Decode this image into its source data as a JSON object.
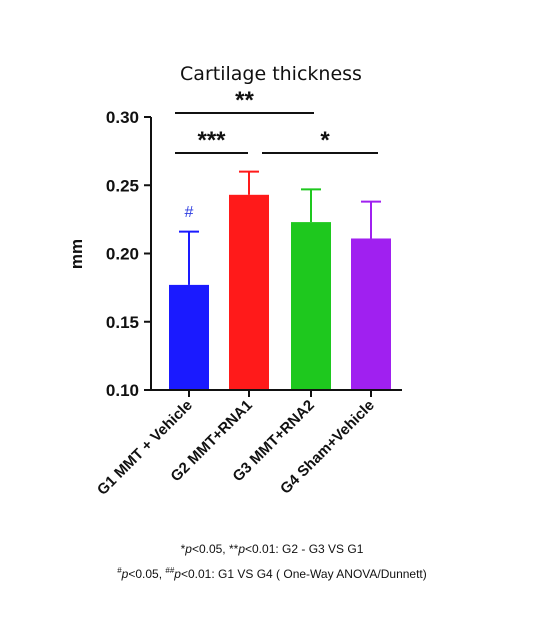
{
  "chart_data": {
    "type": "bar",
    "title": "Cartilage thickness",
    "ylabel": "mm",
    "xlabel": "",
    "ylim": [
      0.1,
      0.3
    ],
    "yticks": [
      "0.30",
      "0.25",
      "0.20",
      "0.15",
      "0.10"
    ],
    "categories": [
      "G1 MMT + Vehicle",
      "G2 MMT+RNA1",
      "G3 MMT+RNA2",
      "G4 Sham+Vehicle"
    ],
    "values": [
      0.177,
      0.243,
      0.223,
      0.211
    ],
    "errors": [
      0.039,
      0.017,
      0.024,
      0.027
    ],
    "colors": [
      "#1a1aff",
      "#ff1a1a",
      "#1ec81e",
      "#a020f0"
    ],
    "bar_annotations": [
      {
        "category": "G1 MMT + Vehicle",
        "text": "#",
        "color": "#2f3fe0"
      }
    ],
    "significance": [
      {
        "from": "G1 MMT + Vehicle",
        "to": "G3 MMT+RNA2",
        "label": "**"
      },
      {
        "from": "G1 MMT + Vehicle",
        "to": "G2 MMT+RNA1",
        "label": "***"
      },
      {
        "from": "G2 MMT+RNA1",
        "to": "G4 Sham+Vehicle",
        "label": "*"
      }
    ],
    "grid": false,
    "legend": "none"
  },
  "footnotes": {
    "line1": {
      "p1": "*",
      "p2": "p",
      "p3": "<0.05, **",
      "p4": "p",
      "p5": "<0.01: G2 - G3 VS G1"
    },
    "line2": {
      "p1": "#",
      "p2": "p",
      "p3": "<0.05, ",
      "p4": "##",
      "p5": "p",
      "p6": "<0.01: G1 VS G4 ( One-Way ANOVA/Dunnett)"
    }
  }
}
